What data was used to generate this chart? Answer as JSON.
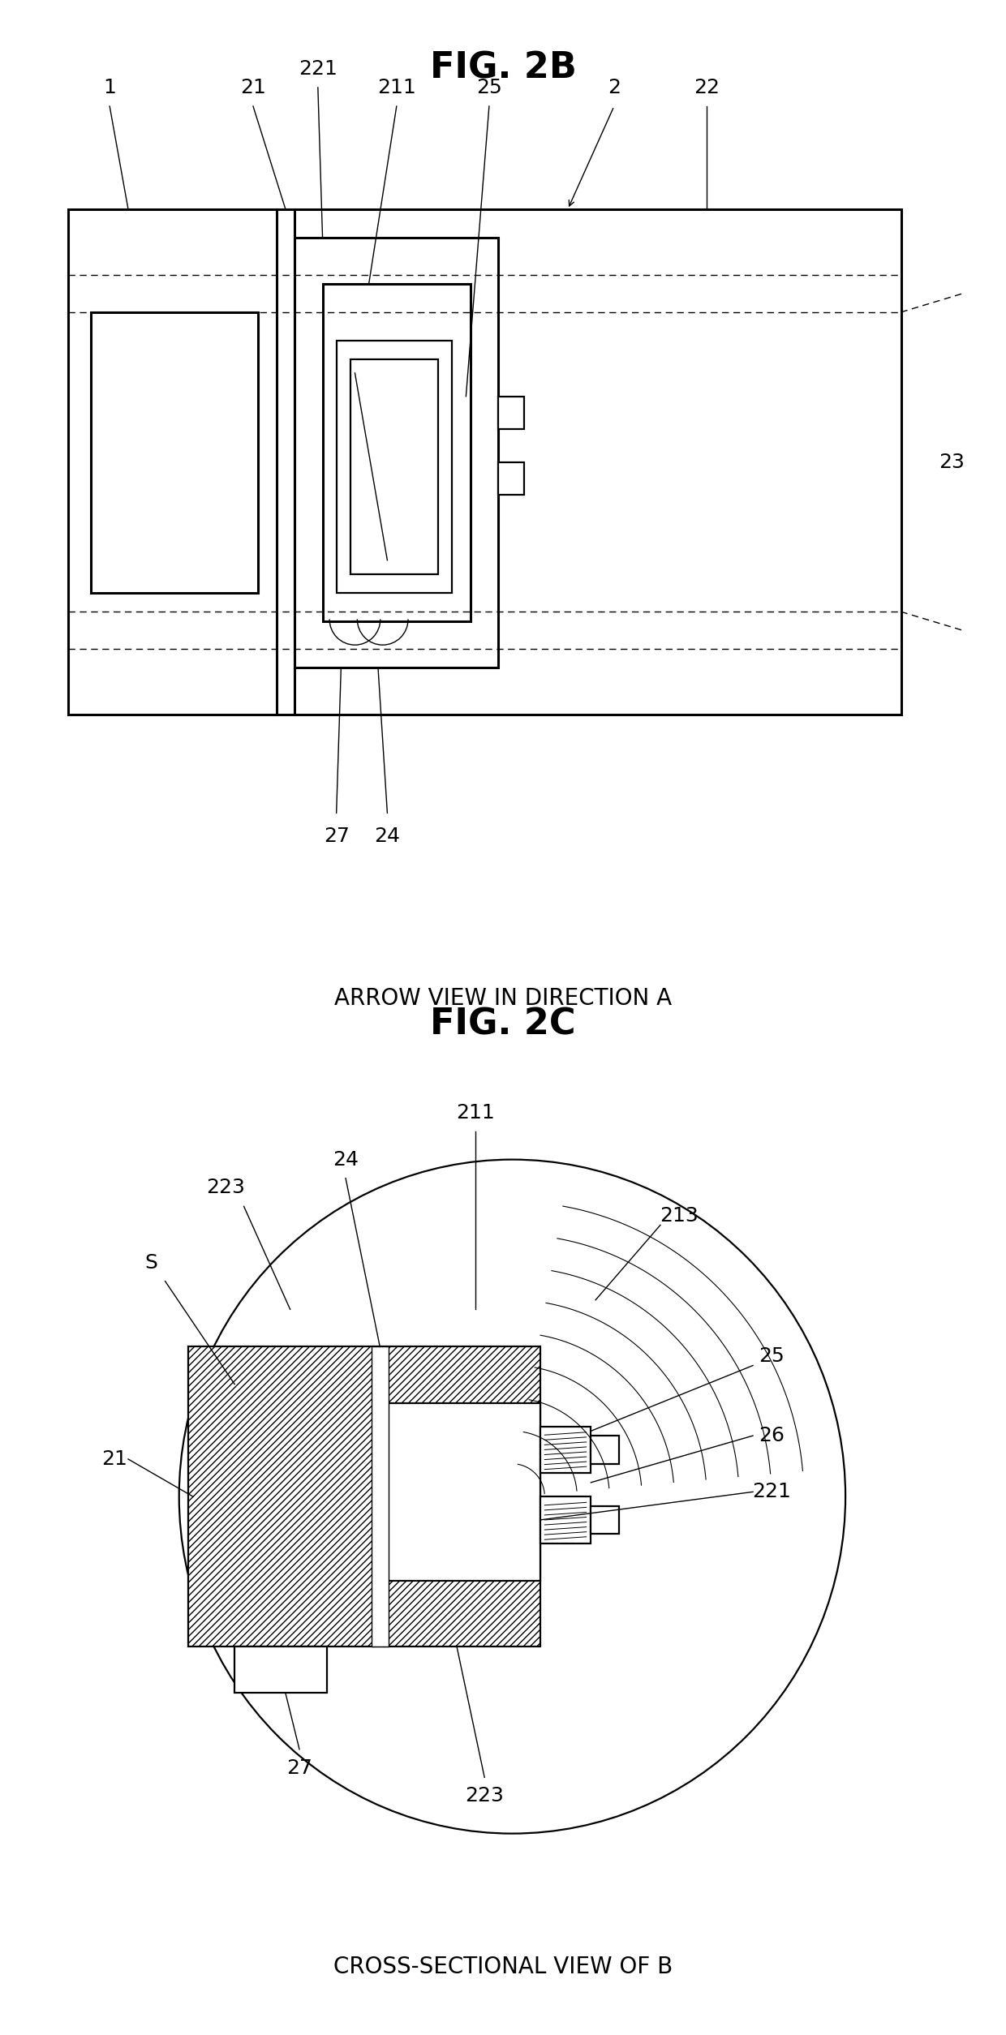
{
  "fig_title_1": "FIG. 2B",
  "fig_title_2": "FIG. 2C",
  "caption_1": "ARROW VIEW IN DIRECTION A",
  "caption_2": "CROSS-SECTIONAL VIEW OF B",
  "bg_color": "#ffffff",
  "line_color": "#000000",
  "font_size_title": 32,
  "font_size_label": 18,
  "font_size_caption": 20
}
